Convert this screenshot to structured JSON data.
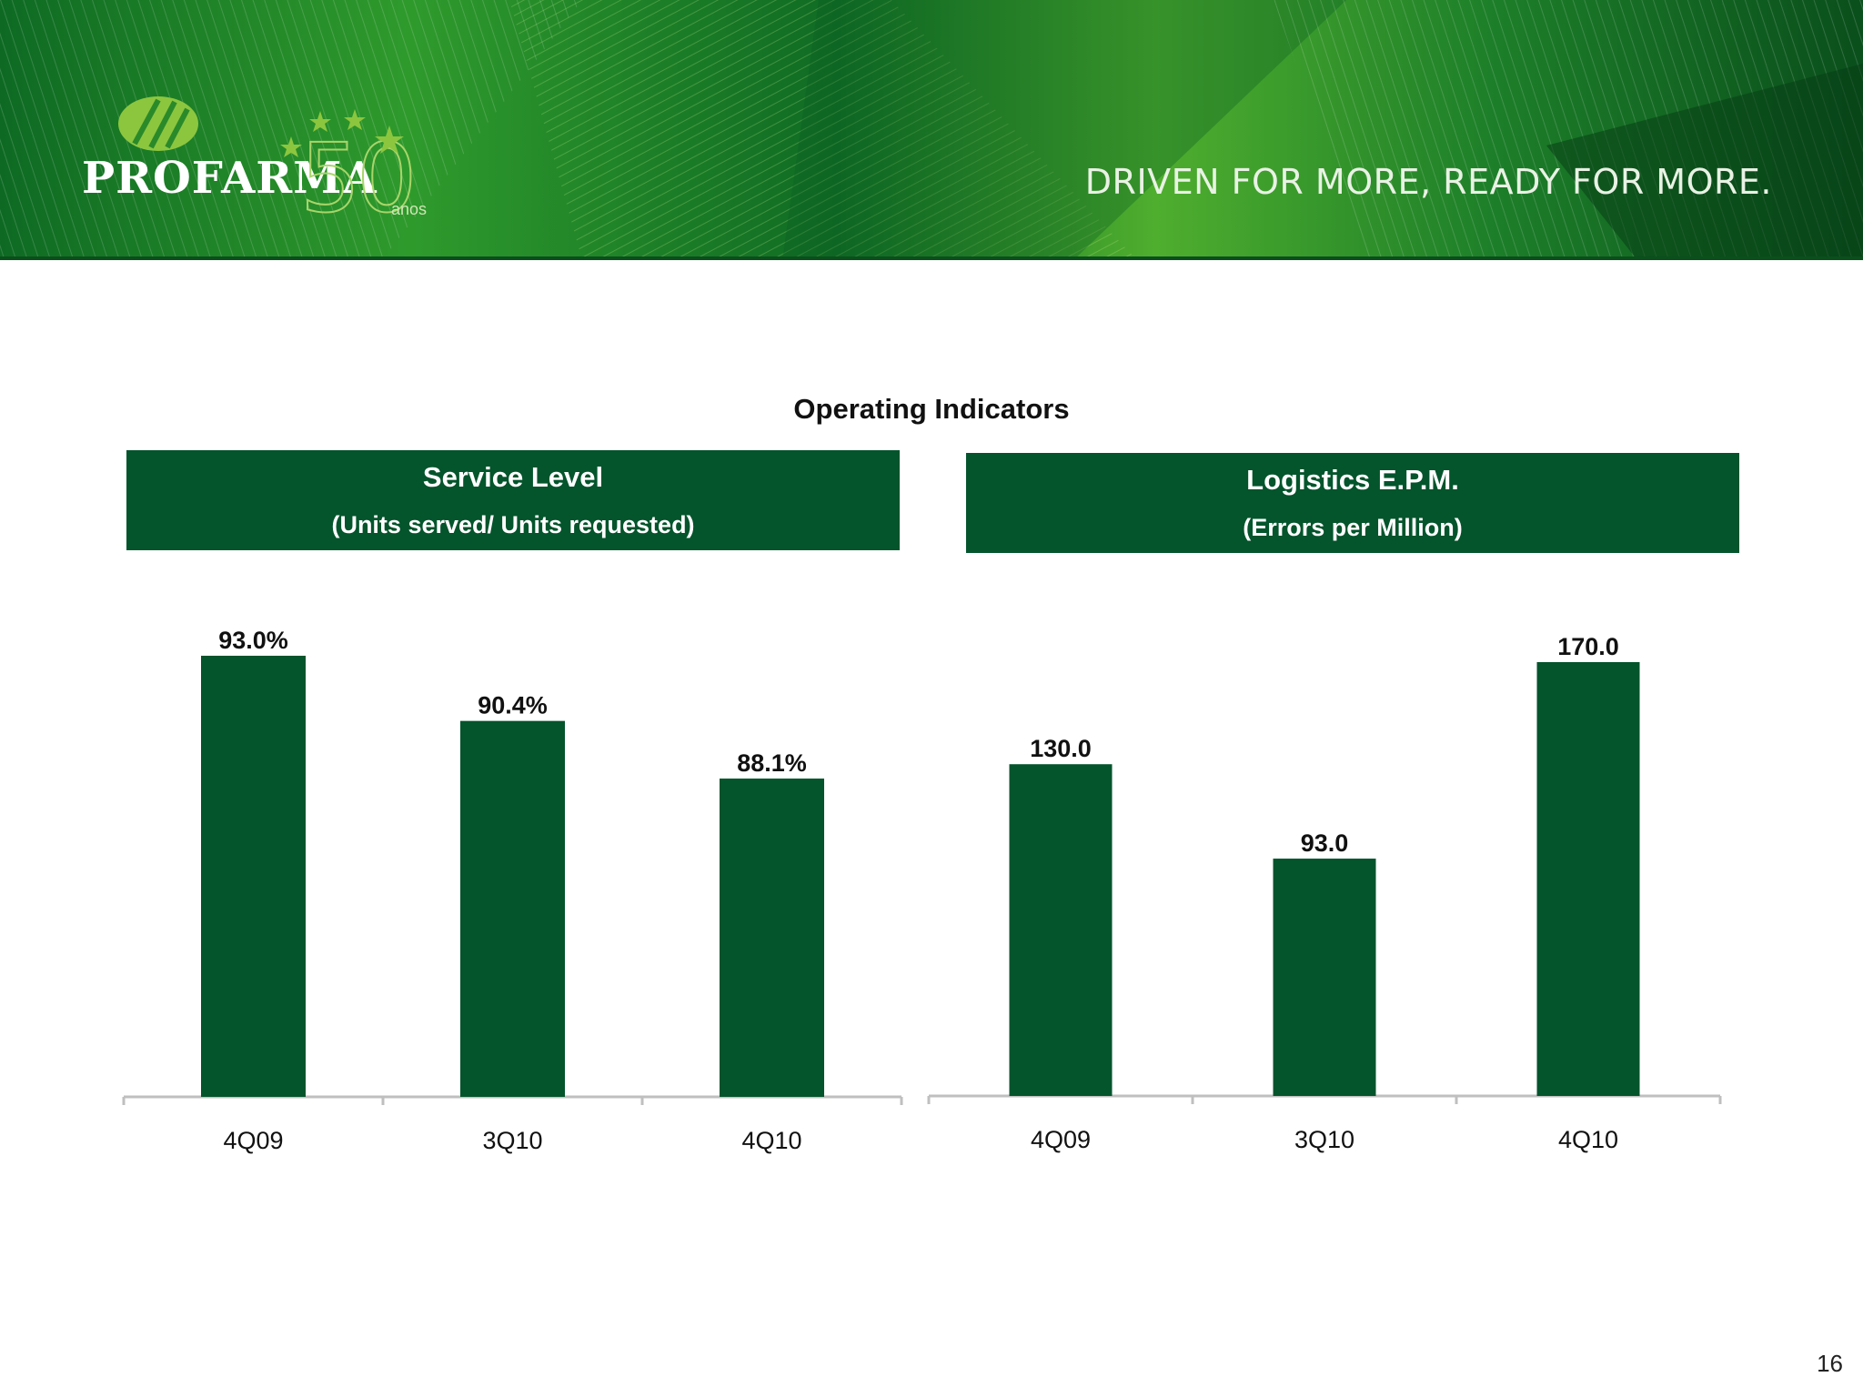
{
  "banner": {
    "brand": "PROFARMA",
    "anniversary_number": "50",
    "anniversary_suffix": "anos",
    "tagline": "DRIVEN FOR MORE, READY FOR MORE.",
    "colors": {
      "dark_green": "#0b5a22",
      "mid_green": "#2f9a2c",
      "light_green": "#8cc63f"
    }
  },
  "slide": {
    "title": "Operating Indicators",
    "page_number": "16"
  },
  "panels": [
    {
      "title": "Service Level",
      "subtitle": "(Units served/ Units requested)"
    },
    {
      "title": "Logistics E.P.M.",
      "subtitle": "(Errors per Million)"
    }
  ],
  "colors": {
    "bar": "#04542c",
    "header_bg": "#04542c",
    "axis": "#bfbfbf"
  },
  "chart_data": [
    {
      "type": "bar",
      "title": "Service Level",
      "categories": [
        "4Q09",
        "3Q10",
        "4Q10"
      ],
      "values": [
        93.0,
        90.4,
        88.1
      ],
      "labels": [
        "93.0%",
        "90.4%",
        "88.1%"
      ],
      "unit": "%",
      "ylim": [
        75.4,
        93.0
      ],
      "grid": false,
      "legend": "none"
    },
    {
      "type": "bar",
      "title": "Logistics E.P.M.",
      "categories": [
        "4Q09",
        "3Q10",
        "4Q10"
      ],
      "values": [
        130.0,
        93.0,
        170.0
      ],
      "labels": [
        "130.0",
        "93.0",
        "170.0"
      ],
      "ylim": [
        0,
        170
      ],
      "grid": false,
      "legend": "none"
    }
  ]
}
